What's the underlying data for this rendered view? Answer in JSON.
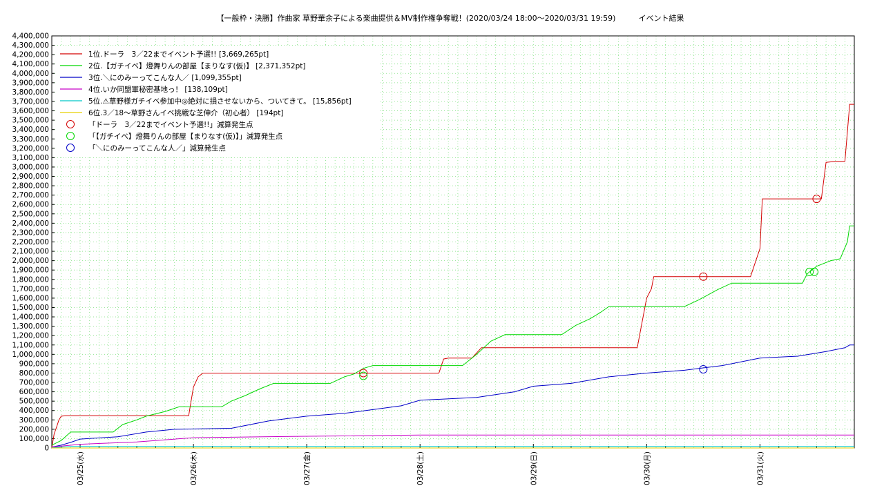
{
  "chart_data": {
    "type": "line",
    "title": "【一般枠・決勝】作曲家 草野華余子による楽曲提供＆MV制作権争奪戦！(2020/03/24 18:00〜2020/03/31 19:59)　　　イベント結果",
    "xlabel": "",
    "ylabel": "",
    "grid": true,
    "legend_position": "top-left",
    "xlim": [
      "2020-03-24 18:00",
      "2020-03-31 19:59"
    ],
    "ylim": [
      0,
      4400000
    ],
    "y_ticks": [
      "0",
      "100,000",
      "200,000",
      "300,000",
      "400,000",
      "500,000",
      "600,000",
      "700,000",
      "800,000",
      "900,000",
      "1,000,000",
      "1,100,000",
      "1,200,000",
      "1,300,000",
      "1,400,000",
      "1,500,000",
      "1,600,000",
      "1,700,000",
      "1,800,000",
      "1,900,000",
      "2,000,000",
      "2,100,000",
      "2,200,000",
      "2,300,000",
      "2,400,000",
      "2,500,000",
      "2,600,000",
      "2,700,000",
      "2,800,000",
      "2,900,000",
      "3,000,000",
      "3,100,000",
      "3,200,000",
      "3,300,000",
      "3,400,000",
      "3,500,000",
      "3,600,000",
      "3,700,000",
      "3,800,000",
      "3,900,000",
      "4,000,000",
      "4,100,000",
      "4,200,000",
      "4,300,000",
      "4,400,000"
    ],
    "x_ticks": [
      {
        "label": "03/25(水)",
        "x": "2020-03-25 00:00"
      },
      {
        "label": "03/26(木)",
        "x": "2020-03-26 00:00"
      },
      {
        "label": "03/27(金)",
        "x": "2020-03-27 00:00"
      },
      {
        "label": "03/28(土)",
        "x": "2020-03-28 00:00"
      },
      {
        "label": "03/29(日)",
        "x": "2020-03-29 00:00"
      },
      {
        "label": "03/30(月)",
        "x": "2020-03-30 00:00"
      },
      {
        "label": "03/31(火)",
        "x": "2020-03-31 00:00"
      }
    ],
    "series": [
      {
        "name": "1位.ドーラ　3／22までイベント予選!! [3,669,265pt]",
        "color": "#d40000",
        "points": [
          [
            "2020-03-24 18:00",
            0
          ],
          [
            "2020-03-24 18:30",
            150000
          ],
          [
            "2020-03-24 19:00",
            220000
          ],
          [
            "2020-03-24 19:30",
            300000
          ],
          [
            "2020-03-24 20:00",
            340000
          ],
          [
            "2020-03-24 21:00",
            345000
          ],
          [
            "2020-03-25 23:00",
            345000
          ],
          [
            "2020-03-25 23:30",
            500000
          ],
          [
            "2020-03-26 00:00",
            650000
          ],
          [
            "2020-03-26 01:00",
            760000
          ],
          [
            "2020-03-26 02:00",
            800000
          ],
          [
            "2020-03-28 04:00",
            800000
          ],
          [
            "2020-03-28 05:00",
            950000
          ],
          [
            "2020-03-28 06:00",
            960000
          ],
          [
            "2020-03-28 11:00",
            960000
          ],
          [
            "2020-03-28 13:00",
            1070000
          ],
          [
            "2020-03-29 22:00",
            1070000
          ],
          [
            "2020-03-30 00:00",
            1600000
          ],
          [
            "2020-03-30 01:00",
            1700000
          ],
          [
            "2020-03-30 01:30",
            1830000
          ],
          [
            "2020-03-30 22:00",
            1830000
          ],
          [
            "2020-03-31 00:00",
            2130000
          ],
          [
            "2020-03-31 00:30",
            2660000
          ],
          [
            "2020-03-31 13:00",
            2660000
          ],
          [
            "2020-03-31 14:00",
            3050000
          ],
          [
            "2020-03-31 16:00",
            3060000
          ],
          [
            "2020-03-31 18:00",
            3060000
          ],
          [
            "2020-03-31 19:00",
            3669265
          ],
          [
            "2020-03-31 19:59",
            3669265
          ]
        ]
      },
      {
        "name": "2位.【ガチイベ】燈舞りんの部屋【まりなす(仮)】 [2,371,352pt]",
        "color": "#00d800",
        "points": [
          [
            "2020-03-24 18:00",
            30000
          ],
          [
            "2020-03-24 20:00",
            80000
          ],
          [
            "2020-03-24 22:00",
            170000
          ],
          [
            "2020-03-25 07:00",
            170000
          ],
          [
            "2020-03-25 09:00",
            250000
          ],
          [
            "2020-03-25 12:00",
            300000
          ],
          [
            "2020-03-25 14:00",
            340000
          ],
          [
            "2020-03-25 18:00",
            390000
          ],
          [
            "2020-03-25 21:00",
            440000
          ],
          [
            "2020-03-26 06:00",
            440000
          ],
          [
            "2020-03-26 08:00",
            500000
          ],
          [
            "2020-03-26 11:00",
            560000
          ],
          [
            "2020-03-26 14:00",
            630000
          ],
          [
            "2020-03-26 17:00",
            690000
          ],
          [
            "2020-03-27 05:00",
            690000
          ],
          [
            "2020-03-27 08:00",
            760000
          ],
          [
            "2020-03-27 10:00",
            790000
          ],
          [
            "2020-03-27 12:00",
            850000
          ],
          [
            "2020-03-27 14:00",
            880000
          ],
          [
            "2020-03-28 09:00",
            880000
          ],
          [
            "2020-03-28 12:00",
            1000000
          ],
          [
            "2020-03-28 15:00",
            1140000
          ],
          [
            "2020-03-28 18:00",
            1210000
          ],
          [
            "2020-03-29 06:00",
            1210000
          ],
          [
            "2020-03-29 09:00",
            1310000
          ],
          [
            "2020-03-29 12:00",
            1380000
          ],
          [
            "2020-03-29 14:00",
            1440000
          ],
          [
            "2020-03-29 16:00",
            1510000
          ],
          [
            "2020-03-30 08:00",
            1510000
          ],
          [
            "2020-03-30 11:00",
            1580000
          ],
          [
            "2020-03-30 15:00",
            1690000
          ],
          [
            "2020-03-30 18:00",
            1760000
          ],
          [
            "2020-03-31 09:00",
            1760000
          ],
          [
            "2020-03-31 10:00",
            1860000
          ],
          [
            "2020-03-31 12:00",
            1940000
          ],
          [
            "2020-03-31 15:00",
            2000000
          ],
          [
            "2020-03-31 17:00",
            2020000
          ],
          [
            "2020-03-31 18:30",
            2200000
          ],
          [
            "2020-03-31 19:00",
            2371352
          ],
          [
            "2020-03-31 19:59",
            2371352
          ]
        ]
      },
      {
        "name": "3位.＼にのみーってこんな人／ [1,099,355pt]",
        "color": "#0000c8",
        "points": [
          [
            "2020-03-24 18:00",
            10000
          ],
          [
            "2020-03-24 20:00",
            30000
          ],
          [
            "2020-03-24 22:00",
            60000
          ],
          [
            "2020-03-25 00:00",
            95000
          ],
          [
            "2020-03-25 08:00",
            120000
          ],
          [
            "2020-03-25 14:00",
            170000
          ],
          [
            "2020-03-25 20:00",
            200000
          ],
          [
            "2020-03-26 08:00",
            210000
          ],
          [
            "2020-03-26 16:00",
            290000
          ],
          [
            "2020-03-27 00:00",
            340000
          ],
          [
            "2020-03-27 08:00",
            370000
          ],
          [
            "2020-03-27 14:00",
            410000
          ],
          [
            "2020-03-27 20:00",
            450000
          ],
          [
            "2020-03-28 00:00",
            510000
          ],
          [
            "2020-03-28 12:00",
            540000
          ],
          [
            "2020-03-28 20:00",
            600000
          ],
          [
            "2020-03-29 00:00",
            660000
          ],
          [
            "2020-03-29 08:00",
            690000
          ],
          [
            "2020-03-29 16:00",
            760000
          ],
          [
            "2020-03-30 00:00",
            800000
          ],
          [
            "2020-03-30 08:00",
            830000
          ],
          [
            "2020-03-30 16:00",
            880000
          ],
          [
            "2020-03-31 00:00",
            960000
          ],
          [
            "2020-03-31 08:00",
            980000
          ],
          [
            "2020-03-31 14:00",
            1030000
          ],
          [
            "2020-03-31 18:00",
            1070000
          ],
          [
            "2020-03-31 19:00",
            1099355
          ],
          [
            "2020-03-31 19:59",
            1099355
          ]
        ]
      },
      {
        "name": "4位.いか同盟軍秘密基地っ！ [138,109pt]",
        "color": "#c800c8",
        "points": [
          [
            "2020-03-24 18:00",
            10000
          ],
          [
            "2020-03-25 00:00",
            40000
          ],
          [
            "2020-03-25 12:00",
            65000
          ],
          [
            "2020-03-26 00:00",
            110000
          ],
          [
            "2020-03-27 00:00",
            125000
          ],
          [
            "2020-03-28 00:00",
            138109
          ],
          [
            "2020-03-31 19:59",
            138109
          ]
        ]
      },
      {
        "name": "5位.⚠草野様ガチイベ参加中◎絶対に損させないから、ついてきて。 [15,856pt]",
        "color": "#00c8c8",
        "points": [
          [
            "2020-03-24 18:00",
            2000
          ],
          [
            "2020-03-24 22:00",
            15856
          ],
          [
            "2020-03-31 19:59",
            15856
          ]
        ]
      },
      {
        "name": "6位.3／18〜草野さんイベ挑戦な芝伸介（初心者） [194pt]",
        "color": "#e8d000",
        "points": [
          [
            "2020-03-24 18:00",
            194
          ],
          [
            "2020-03-31 19:59",
            194
          ]
        ]
      }
    ],
    "markers": [
      {
        "name": "「ドーラ　3／22までイベント予選!!」減算発生点",
        "color": "#d40000",
        "points": [
          [
            "2020-03-27 12:00",
            800000
          ],
          [
            "2020-03-30 12:00",
            1830000
          ],
          [
            "2020-03-31 12:00",
            2660000
          ]
        ]
      },
      {
        "name": "「【ガチイベ】燈舞りんの部屋【まりなす(仮)】」減算発生点",
        "color": "#00d800",
        "points": [
          [
            "2020-03-27 12:00",
            770000
          ],
          [
            "2020-03-31 10:30",
            1880000
          ],
          [
            "2020-03-31 11:30",
            1880000
          ]
        ]
      },
      {
        "name": "「＼にのみーってこんな人／」減算発生点",
        "color": "#0000c8",
        "points": [
          [
            "2020-03-30 12:00",
            840000
          ]
        ]
      }
    ]
  }
}
